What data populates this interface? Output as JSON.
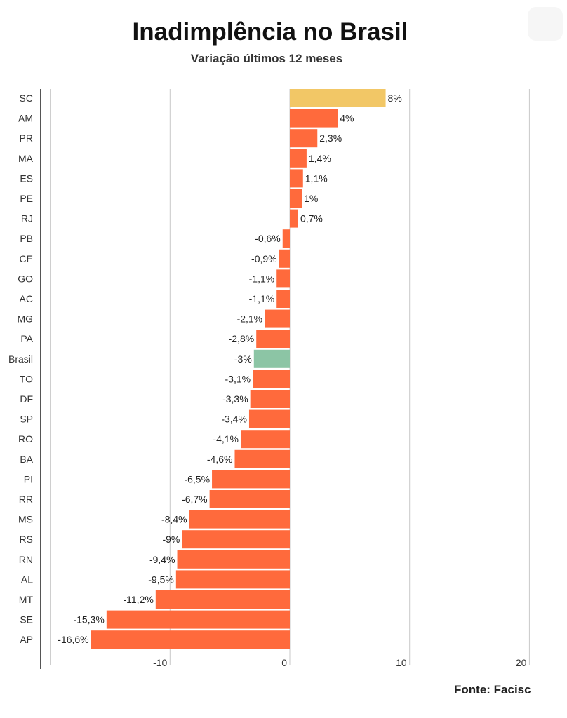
{
  "title": "Inadimplência no Brasil",
  "subtitle": "Variação últimos 12 meses",
  "source": "Fonte: Facisc",
  "chart_data": {
    "type": "bar",
    "orientation": "horizontal",
    "title": "Inadimplência no Brasil",
    "subtitle": "Variação últimos 12 meses",
    "xlabel": "",
    "ylabel": "",
    "xlim": [
      -20,
      20
    ],
    "ticks": [
      -10,
      0,
      10,
      20
    ],
    "tick_labels": [
      "-10",
      "0",
      "10",
      "20"
    ],
    "grid": true,
    "categories": [
      "SC",
      "AM",
      "PR",
      "MA",
      "ES",
      "PE",
      "RJ",
      "PB",
      "CE",
      "GO",
      "AC",
      "MG",
      "PA",
      "Brasil",
      "TO",
      "DF",
      "SP",
      "RO",
      "BA",
      "PI",
      "RR",
      "MS",
      "RS",
      "RN",
      "AL",
      "MT",
      "SE",
      "AP"
    ],
    "values": [
      8,
      4,
      2.3,
      1.4,
      1.1,
      1,
      0.7,
      -0.6,
      -0.9,
      -1.1,
      -1.1,
      -2.1,
      -2.8,
      -3,
      -3.1,
      -3.3,
      -3.4,
      -4.1,
      -4.6,
      -6.5,
      -6.7,
      -8.4,
      -9,
      -9.4,
      -9.5,
      -11.2,
      -15.3,
      -16.6
    ],
    "value_labels": [
      "8%",
      "4%",
      "2,3%",
      "1,4%",
      "1,1%",
      "1%",
      "0,7%",
      "-0,6%",
      "-0,9%",
      "-1,1%",
      "-1,1%",
      "-2,1%",
      "-2,8%",
      "-3%",
      "-3,1%",
      "-3,3%",
      "-3,4%",
      "-4,1%",
      "-4,6%",
      "-6,5%",
      "-6,7%",
      "-8,4%",
      "-9%",
      "-9,4%",
      "-9,5%",
      "-11,2%",
      "-15,3%",
      "-16,6%"
    ],
    "colors": {
      "default": "#ff6a3c",
      "highlight_top": "#f2c766",
      "brasil": "#8cc5a5",
      "grid": "#c8c8c8",
      "axis": "#555555"
    }
  }
}
